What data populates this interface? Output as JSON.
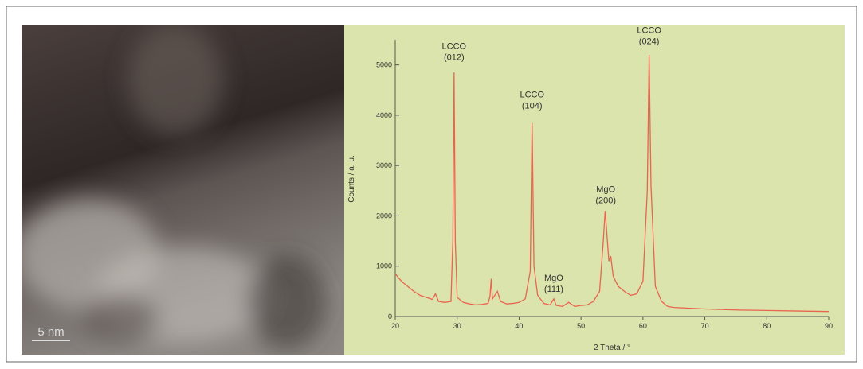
{
  "image_panel": {
    "scale_bar_label": "5 nm"
  },
  "chart_data": {
    "type": "line",
    "xlabel": "2 Theta / °",
    "ylabel": "Counts / a. u.",
    "x": [
      20,
      21,
      22,
      23,
      24,
      25,
      26,
      26.5,
      27,
      28,
      29,
      29.3,
      29.5,
      29.7,
      30,
      31,
      32,
      33,
      34,
      35,
      35.3,
      35.5,
      35.7,
      36.5,
      37,
      38,
      39,
      40,
      41,
      41.8,
      42.1,
      42.4,
      43,
      44,
      45,
      45.6,
      46,
      47,
      48,
      49,
      50,
      51,
      52,
      53,
      53.6,
      53.9,
      54.2,
      54.5,
      54.8,
      55.2,
      56,
      57,
      58,
      59,
      60,
      60.7,
      61,
      61.3,
      62,
      63,
      64,
      65,
      70,
      75,
      80,
      85,
      90
    ],
    "values": [
      850,
      700,
      600,
      500,
      420,
      380,
      340,
      450,
      300,
      280,
      300,
      1500,
      4850,
      1500,
      380,
      280,
      250,
      230,
      240,
      260,
      400,
      750,
      350,
      500,
      300,
      250,
      260,
      280,
      350,
      900,
      3850,
      1000,
      420,
      260,
      230,
      350,
      220,
      200,
      280,
      200,
      220,
      230,
      300,
      500,
      1500,
      2100,
      1600,
      1100,
      1200,
      800,
      600,
      500,
      420,
      450,
      700,
      2500,
      5200,
      2600,
      600,
      300,
      200,
      180,
      150,
      130,
      120,
      110,
      100
    ],
    "color": "#e8654f",
    "xlim": [
      20,
      90
    ],
    "xticks": [
      20,
      30,
      40,
      50,
      60,
      70,
      80,
      90
    ],
    "ylim": [
      0,
      5500
    ],
    "yticks": [
      0,
      1000,
      2000,
      3000,
      4000,
      5000
    ],
    "annotations": [
      {
        "lines": [
          "LCCO",
          "(012)"
        ],
        "x": 29.5,
        "y": 5100
      },
      {
        "lines": [
          "LCCO",
          "(104)"
        ],
        "x": 42.1,
        "y": 4130
      },
      {
        "lines": [
          "MgO",
          "(111)"
        ],
        "x": 45.6,
        "y": 490
      },
      {
        "lines": [
          "MgO",
          "(200)"
        ],
        "x": 54,
        "y": 2250
      },
      {
        "lines": [
          "LCCO",
          "(024)"
        ],
        "x": 61,
        "y": 5410
      }
    ]
  }
}
